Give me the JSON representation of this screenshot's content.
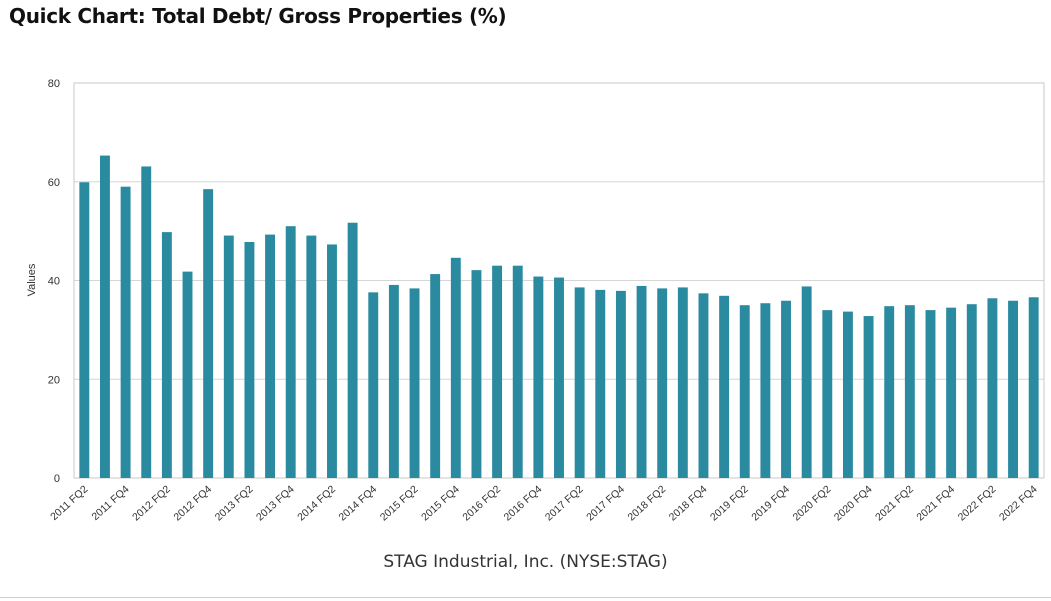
{
  "title": "Quick Chart: Total Debt/ Gross Properties (%)",
  "footer": "STAG Industrial, Inc. (NYSE:STAG)",
  "colors": {
    "bar": "#2a8aa0",
    "grid": "#d6d6d6",
    "frame": "#c8c8c8"
  },
  "chart_data": {
    "type": "bar",
    "title": "Quick Chart: Total Debt/ Gross Properties (%)",
    "subtitle": "STAG Industrial, Inc. (NYSE:STAG)",
    "xlabel": "",
    "ylabel": "Values",
    "ylim": [
      0,
      80
    ],
    "yticks": [
      0,
      20,
      40,
      60,
      80
    ],
    "grid": true,
    "legend": "none",
    "categories": [
      "2011 FQ2",
      "2011 FQ3",
      "2011 FQ4",
      "2012 FQ1",
      "2012 FQ2",
      "2012 FQ3",
      "2012 FQ4",
      "2013 FQ1",
      "2013 FQ2",
      "2013 FQ3",
      "2013 FQ4",
      "2014 FQ1",
      "2014 FQ2",
      "2014 FQ3",
      "2014 FQ4",
      "2015 FQ1",
      "2015 FQ2",
      "2015 FQ3",
      "2015 FQ4",
      "2016 FQ1",
      "2016 FQ2",
      "2016 FQ3",
      "2016 FQ4",
      "2017 FQ1",
      "2017 FQ2",
      "2017 FQ3",
      "2017 FQ4",
      "2018 FQ1",
      "2018 FQ2",
      "2018 FQ3",
      "2018 FQ4",
      "2019 FQ1",
      "2019 FQ2",
      "2019 FQ3",
      "2019 FQ4",
      "2020 FQ1",
      "2020 FQ2",
      "2020 FQ3",
      "2020 FQ4",
      "2021 FQ1",
      "2021 FQ2",
      "2021 FQ3",
      "2021 FQ4",
      "2022 FQ1",
      "2022 FQ2",
      "2022 FQ3",
      "2022 FQ4"
    ],
    "tick_labels": [
      "2011 FQ2",
      "2011 FQ4",
      "2012 FQ2",
      "2012 FQ4",
      "2013 FQ2",
      "2013 FQ4",
      "2014 FQ2",
      "2014 FQ4",
      "2015 FQ2",
      "2015 FQ4",
      "2016 FQ2",
      "2016 FQ4",
      "2017 FQ2",
      "2017 FQ4",
      "2018 FQ2",
      "2018 FQ4",
      "2019 FQ2",
      "2019 FQ4",
      "2020 FQ2",
      "2020 FQ4",
      "2021 FQ2",
      "2021 FQ4",
      "2022 FQ2",
      "2022 FQ4"
    ],
    "values": [
      59.9,
      65.3,
      59.0,
      63.1,
      49.8,
      41.8,
      58.5,
      49.1,
      47.8,
      49.3,
      51.0,
      49.1,
      47.3,
      51.7,
      37.6,
      39.1,
      38.4,
      41.3,
      44.6,
      42.1,
      43.0,
      43.0,
      40.8,
      40.6,
      38.6,
      38.1,
      37.9,
      38.9,
      38.4,
      38.6,
      37.4,
      36.9,
      35.0,
      35.4,
      35.9,
      38.8,
      34.0,
      33.7,
      32.8,
      34.8,
      35.0,
      34.0,
      34.5,
      35.2,
      36.4,
      35.9,
      36.6
    ]
  }
}
